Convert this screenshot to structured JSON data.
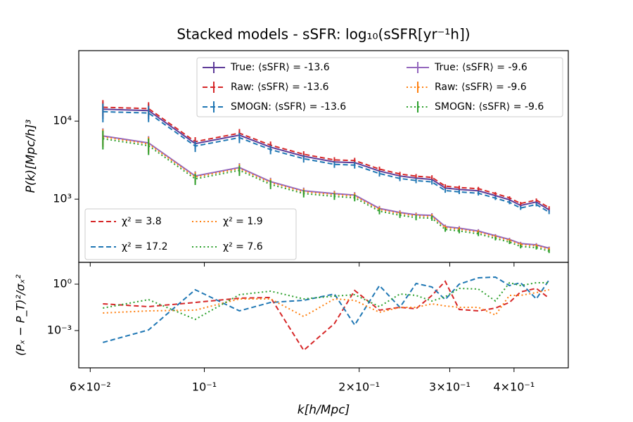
{
  "chart_data": [
    {
      "type": "line",
      "title": "Stacked models - sSFR: log₁₀(sSFR[yr⁻¹h])",
      "ylabel": "P(k)[Mpc/h]³",
      "log_x": true,
      "log_y": true,
      "legend": "upper right",
      "xlim": [
        0.057,
        0.51
      ],
      "ylim": [
        155,
        80000
      ],
      "yticks": [
        {
          "value": 1000,
          "label": "10³"
        },
        {
          "value": 10000,
          "label": "10⁴"
        }
      ],
      "x": [
        0.0635,
        0.0779,
        0.096,
        0.117,
        0.1345,
        0.156,
        0.179,
        0.196,
        0.219,
        0.24,
        0.258,
        0.277,
        0.294,
        0.313,
        0.341,
        0.368,
        0.392,
        0.412,
        0.442,
        0.468
      ],
      "series": [
        {
          "name": "True: ⟨sSFR⟩ = -13.6",
          "color": "#5e3c99",
          "style": "solid",
          "values": [
            14200,
            13650,
            5150,
            6600,
            4640,
            3550,
            3000,
            2940,
            2290,
            1980,
            1860,
            1790,
            1390,
            1330,
            1280,
            1110,
            980,
            830,
            920,
            730
          ],
          "errors": [
            3550,
            3000,
            770,
            920,
            560,
            355,
            270,
            265,
            183,
            139,
            130,
            125,
            83,
            80,
            77,
            56,
            49,
            42,
            46,
            37
          ]
        },
        {
          "name": "Raw: ⟨sSFR⟩ = -13.6",
          "color": "#d62728",
          "style": "dashed",
          "values": [
            15050,
            14470,
            5460,
            7000,
            4920,
            3760,
            3180,
            3120,
            2430,
            2100,
            1970,
            1900,
            1470,
            1410,
            1360,
            1180,
            1040,
            880,
            975,
            775
          ],
          "errors": [
            3550,
            3000,
            770,
            920,
            560,
            355,
            270,
            265,
            183,
            139,
            130,
            125,
            83,
            80,
            77,
            56,
            49,
            42,
            46,
            37
          ]
        },
        {
          "name": "SMOGN: ⟨sSFR⟩ = -13.6",
          "color": "#1f77b4",
          "style": "dashed",
          "values": [
            13200,
            12700,
            4790,
            6140,
            4320,
            3300,
            2790,
            2730,
            2130,
            1840,
            1730,
            1660,
            1290,
            1240,
            1190,
            1030,
            910,
            770,
            855,
            680
          ],
          "errors": [
            3550,
            3000,
            770,
            920,
            560,
            355,
            270,
            265,
            183,
            139,
            130,
            125,
            83,
            80,
            77,
            56,
            49,
            42,
            46,
            37
          ]
        },
        {
          "name": "True: ⟨sSFR⟩ = -9.6",
          "color": "#9467bd",
          "style": "solid",
          "values": [
            6470,
            5260,
            1980,
            2540,
            1680,
            1280,
            1180,
            1130,
            760,
            675,
            630,
            620,
            445,
            425,
            390,
            340,
            305,
            270,
            260,
            235
          ],
          "errors": [
            1620,
            1160,
            300,
            356,
            200,
            128,
            106,
            102,
            61,
            47,
            44,
            43,
            27,
            26,
            23,
            17,
            15,
            14,
            13,
            12
          ]
        },
        {
          "name": "Raw: ⟨sSFR⟩ = -9.6",
          "color": "#ff7f0e",
          "style": "dotted",
          "values": [
            6280,
            5100,
            1920,
            2460,
            1630,
            1240,
            1145,
            1095,
            737,
            655,
            611,
            601,
            432,
            412,
            378,
            330,
            296,
            262,
            252,
            228
          ],
          "errors": [
            1620,
            1160,
            300,
            356,
            200,
            128,
            106,
            102,
            61,
            47,
            44,
            43,
            27,
            26,
            23,
            17,
            15,
            14,
            13,
            12
          ]
        },
        {
          "name": "SMOGN: ⟨sSFR⟩ = -9.6",
          "color": "#2ca02c",
          "style": "dotted",
          "values": [
            5950,
            4840,
            1820,
            2340,
            1545,
            1180,
            1085,
            1040,
            700,
            621,
            580,
            570,
            409,
            391,
            359,
            313,
            281,
            248,
            239,
            216
          ],
          "errors": [
            1620,
            1160,
            300,
            356,
            200,
            128,
            106,
            102,
            61,
            47,
            44,
            43,
            27,
            26,
            23,
            17,
            15,
            14,
            13,
            12
          ]
        }
      ]
    },
    {
      "type": "line",
      "xlabel": "k[h/Mpc]",
      "ylabel": "(Pₓ − P_T)²/σₓ²",
      "log_x": true,
      "log_y": true,
      "legend": "lower left",
      "xlim": [
        0.057,
        0.51
      ],
      "ylim": [
        3.9e-06,
        25.7
      ],
      "xticks": [
        {
          "value": 0.06,
          "label": "6×10⁻²"
        },
        {
          "value": 0.1,
          "label": "10⁻¹"
        },
        {
          "value": 0.2,
          "label": "2×10⁻¹"
        },
        {
          "value": 0.3,
          "label": "3×10⁻¹"
        },
        {
          "value": 0.4,
          "label": "4×10⁻¹"
        }
      ],
      "yticks": [
        {
          "value": 0.001,
          "label": "10⁻³"
        },
        {
          "value": 1,
          "label": "10⁰"
        }
      ],
      "x": [
        0.0635,
        0.0779,
        0.096,
        0.117,
        0.1345,
        0.156,
        0.179,
        0.196,
        0.219,
        0.24,
        0.258,
        0.277,
        0.294,
        0.313,
        0.341,
        0.368,
        0.392,
        0.412,
        0.442,
        0.468
      ],
      "series": [
        {
          "name": "χ² = 3.8",
          "color": "#d62728",
          "style": "dashed",
          "values": [
            0.0534,
            0.0352,
            0.0659,
            0.123,
            0.137,
            5.3e-05,
            0.00285,
            0.39,
            0.0208,
            0.0316,
            0.0256,
            0.187,
            1.52,
            0.0231,
            0.0187,
            0.0285,
            0.0659,
            0.316,
            0.534,
            0.123
          ]
        },
        {
          "name": "χ² = 17.2",
          "color": "#1f77b4",
          "style": "dashed",
          "values": [
            0.00017,
            0.0011,
            0.433,
            0.0187,
            0.0659,
            0.0899,
            0.231,
            0.0023,
            0.811,
            0.0316,
            1.11,
            0.658,
            0.1,
            1.0,
            2.57,
            2.85,
            0.811,
            1.23,
            0.111,
            1.87
          ]
        },
        {
          "name": "χ² = 1.9",
          "color": "#ff7f0e",
          "style": "dotted",
          "values": [
            0.0137,
            0.0187,
            0.0208,
            0.111,
            0.111,
            0.0081,
            0.111,
            0.0899,
            0.0152,
            0.0316,
            0.0316,
            0.0534,
            0.0389,
            0.0316,
            0.0316,
            0.0101,
            0.187,
            0.187,
            0.285,
            0.433
          ]
        },
        {
          "name": "χ² = 7.6",
          "color": "#2ca02c",
          "style": "dotted",
          "values": [
            0.0285,
            0.1,
            0.0053,
            0.208,
            0.351,
            0.111,
            0.169,
            0.208,
            0.0352,
            0.231,
            0.187,
            0.081,
            0.152,
            0.534,
            0.481,
            0.081,
            1.23,
            0.811,
            1.23,
            1.23
          ]
        }
      ]
    }
  ]
}
